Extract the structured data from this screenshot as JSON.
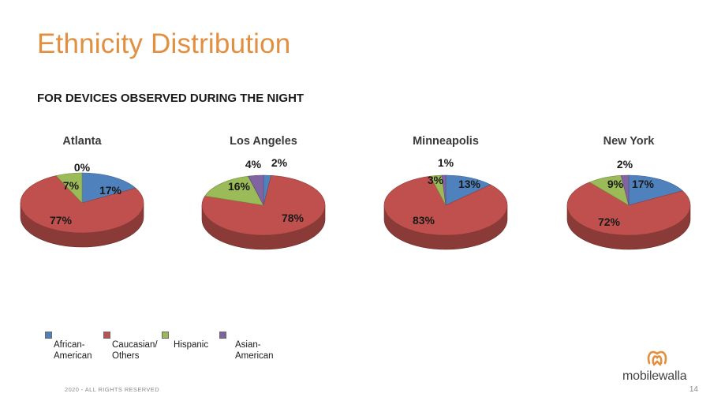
{
  "title": "Ethnicity Distribution",
  "subtitle": "FOR DEVICES OBSERVED DURING THE NIGHT",
  "colors": {
    "African-American": "#4F81BD",
    "Caucasian/Others": "#C0504D",
    "Hispanic": "#9BBB59",
    "Asian-American": "#8064A2"
  },
  "legend": [
    {
      "line1": "African-",
      "line2": "American",
      "color": "#4F81BD"
    },
    {
      "line1": "Caucasian/",
      "line2": "Others",
      "color": "#C0504D"
    },
    {
      "line1": "Hispanic",
      "line2": "",
      "color": "#9BBB59"
    },
    {
      "line1": "Asian-",
      "line2": "American",
      "color": "#8064A2"
    }
  ],
  "chart_data": [
    {
      "type": "pie",
      "title": "Atlanta",
      "categories": [
        "African-American",
        "Caucasian/Others",
        "Hispanic",
        "Asian-American"
      ],
      "values": [
        17,
        77,
        7,
        0
      ],
      "labels": [
        "17%",
        "77%",
        "7%",
        "0%"
      ]
    },
    {
      "type": "pie",
      "title": "Los Angeles",
      "categories": [
        "African-American",
        "Caucasian/Others",
        "Hispanic",
        "Asian-American"
      ],
      "values": [
        2,
        78,
        16,
        4
      ],
      "labels": [
        "2%",
        "78%",
        "16%",
        "4%"
      ]
    },
    {
      "type": "pie",
      "title": "Minneapolis",
      "categories": [
        "African-American",
        "Caucasian/Others",
        "Hispanic",
        "Asian-American"
      ],
      "values": [
        13,
        83,
        3,
        1
      ],
      "labels": [
        "13%",
        "83%",
        "3%",
        "1%"
      ]
    },
    {
      "type": "pie",
      "title": "New York",
      "categories": [
        "African-American",
        "Caucasian/Others",
        "Hispanic",
        "Asian-American"
      ],
      "values": [
        17,
        72,
        9,
        2
      ],
      "labels": [
        "17%",
        "72%",
        "9%",
        "2%"
      ]
    }
  ],
  "footer": "2020 - ALL RIGHTS RESERVED",
  "page_number": "14",
  "logo": {
    "text": "mobilewalla",
    "brand_color": "#E28F3F"
  }
}
